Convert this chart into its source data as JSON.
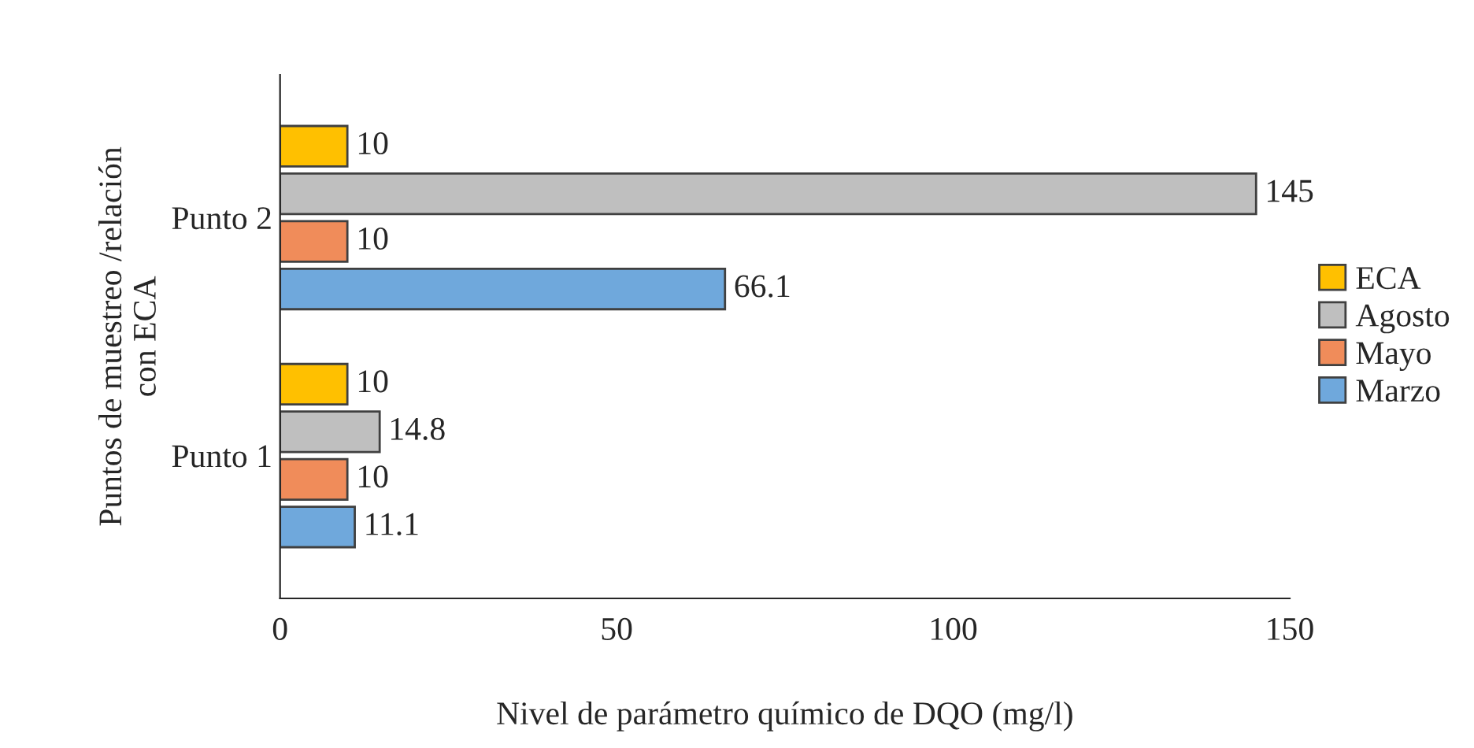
{
  "chart_data": {
    "type": "bar",
    "orientation": "horizontal",
    "xlabel": "Nivel de parámetro químico de DQO (mg/l)",
    "ylabel": "Puntos de muestreo /relación\ncon ECA",
    "categories": [
      "Punto 2",
      "Punto 1"
    ],
    "series": [
      {
        "name": "ECA",
        "color": "#ffc000",
        "values": [
          10,
          10
        ]
      },
      {
        "name": "Agosto",
        "color": "#bfbfbf",
        "values": [
          145,
          14.8
        ]
      },
      {
        "name": "Mayo",
        "color": "#f08c5a",
        "values": [
          10,
          10
        ]
      },
      {
        "name": "Marzo",
        "color": "#6fa8dc",
        "values": [
          66.1,
          11.1
        ]
      }
    ],
    "xlim": [
      0,
      150
    ],
    "xticks": [
      0,
      50,
      100,
      150
    ],
    "grid": false,
    "legend": "right",
    "data_labels": true
  }
}
